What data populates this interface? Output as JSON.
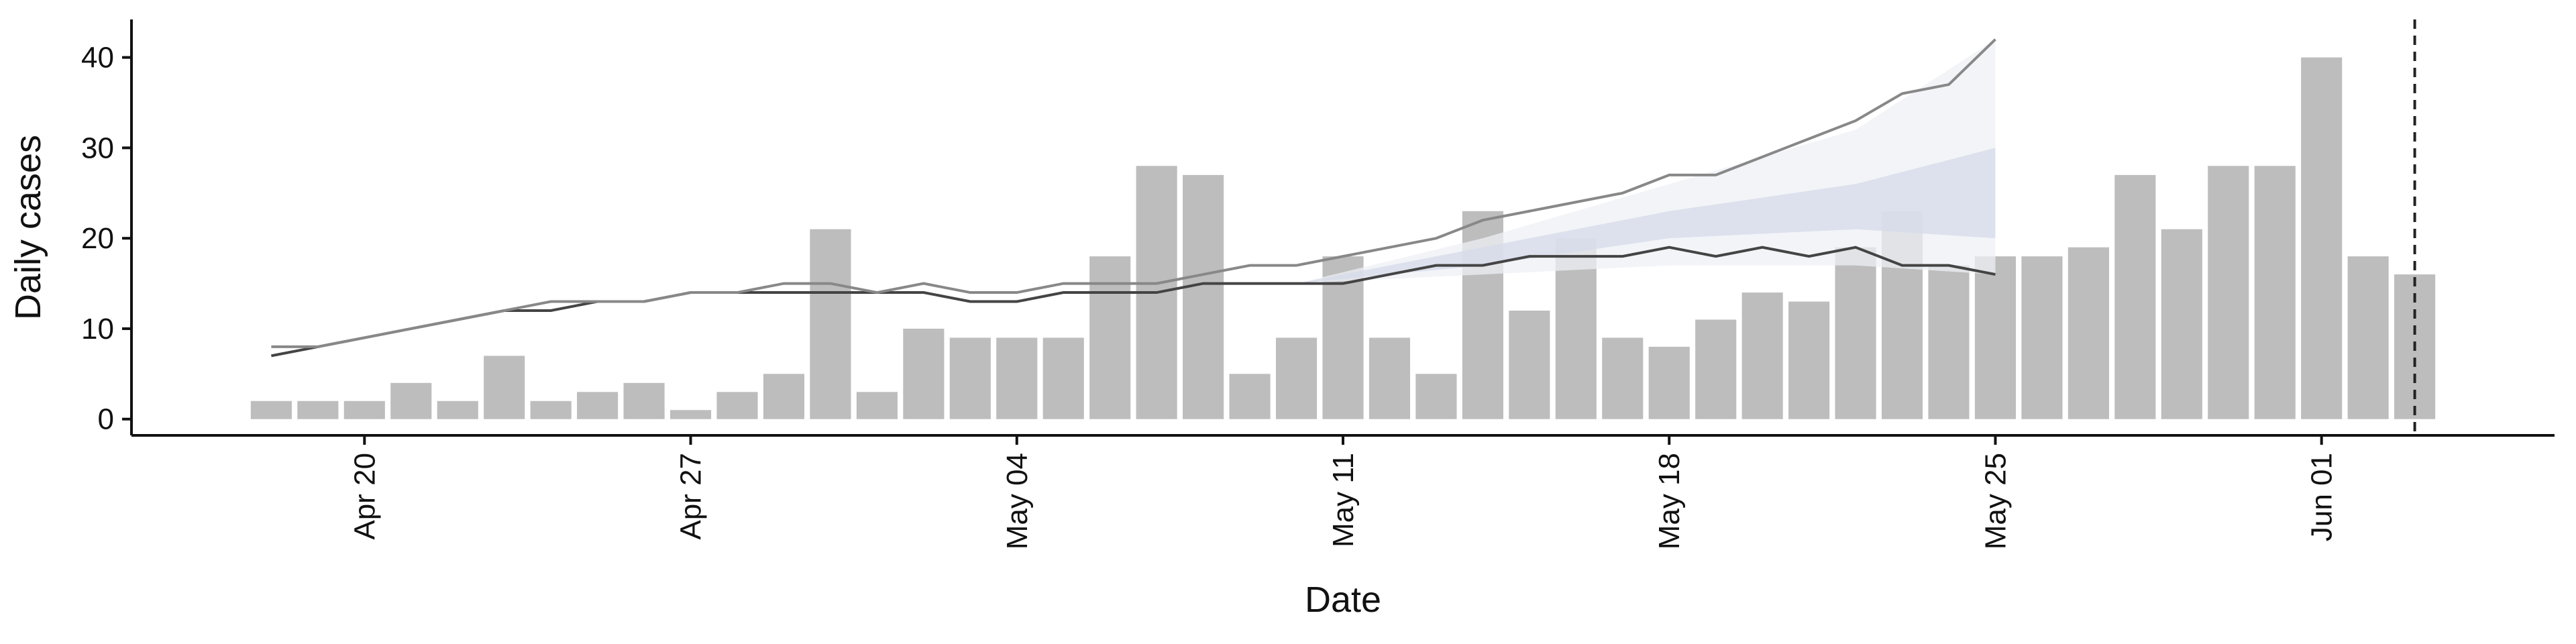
{
  "chart_data": {
    "type": "bar",
    "x_label": "Date",
    "y_label": "Daily cases",
    "x": [
      "Apr 18",
      "Apr 19",
      "Apr 20",
      "Apr 21",
      "Apr 22",
      "Apr 23",
      "Apr 24",
      "Apr 25",
      "Apr 26",
      "Apr 27",
      "Apr 28",
      "Apr 29",
      "Apr 30",
      "May 01",
      "May 02",
      "May 03",
      "May 04",
      "May 05",
      "May 06",
      "May 07",
      "May 08",
      "May 09",
      "May 10",
      "May 11",
      "May 12",
      "May 13",
      "May 14",
      "May 15",
      "May 16",
      "May 17",
      "May 18",
      "May 19",
      "May 20",
      "May 21",
      "May 22",
      "May 23",
      "May 24",
      "May 25",
      "May 26",
      "May 27",
      "May 28",
      "May 29",
      "May 30",
      "May 31",
      "Jun 01",
      "Jun 02",
      "Jun 03"
    ],
    "values": [
      2,
      2,
      2,
      4,
      2,
      7,
      2,
      3,
      4,
      1,
      3,
      5,
      21,
      3,
      10,
      9,
      9,
      9,
      18,
      28,
      27,
      5,
      9,
      18,
      9,
      5,
      23,
      12,
      20,
      9,
      8,
      11,
      14,
      13,
      19,
      23,
      17,
      18,
      18,
      19,
      27,
      21,
      28,
      28,
      40,
      18,
      16
    ],
    "color": "#bdbdbd",
    "bands": [
      {
        "x": [
          "May 10",
          "May 14",
          "May 18",
          "May 22",
          "May 25"
        ],
        "lower": [
          15,
          16,
          17,
          17,
          16
        ],
        "upper": [
          15,
          20,
          26,
          32,
          42
        ],
        "color": "#eef0f6"
      },
      {
        "x": [
          "May 10",
          "May 14",
          "May 18",
          "May 22",
          "May 25"
        ],
        "lower": [
          15,
          17,
          20,
          21,
          20
        ],
        "upper": [
          15,
          19,
          23,
          26,
          30
        ],
        "color": "#d6dbea"
      }
    ],
    "lines": [
      {
        "color": "#444444",
        "x": [
          "Apr 18",
          "Apr 19",
          "Apr 20",
          "Apr 21",
          "Apr 22",
          "Apr 23",
          "Apr 24",
          "Apr 25",
          "Apr 26",
          "Apr 27",
          "Apr 28",
          "Apr 29",
          "Apr 30",
          "May 01",
          "May 02",
          "May 03",
          "May 04",
          "May 05",
          "May 06",
          "May 07",
          "May 08",
          "May 09",
          "May 10",
          "May 11",
          "May 12",
          "May 13",
          "May 14",
          "May 15",
          "May 16",
          "May 17",
          "May 18",
          "May 19",
          "May 20",
          "May 21",
          "May 22",
          "May 23",
          "May 24",
          "May 25"
        ],
        "values": [
          7,
          8,
          9,
          10,
          11,
          12,
          12,
          13,
          13,
          14,
          14,
          14,
          14,
          14,
          14,
          13,
          13,
          14,
          14,
          14,
          15,
          15,
          15,
          15,
          16,
          17,
          17,
          18,
          18,
          18,
          19,
          18,
          19,
          18,
          19,
          17,
          17,
          16
        ]
      },
      {
        "color": "#888888",
        "x": [
          "Apr 18",
          "Apr 19",
          "Apr 20",
          "Apr 21",
          "Apr 22",
          "Apr 23",
          "Apr 24",
          "Apr 25",
          "Apr 26",
          "Apr 27",
          "Apr 28",
          "Apr 29",
          "Apr 30",
          "May 01",
          "May 02",
          "May 03",
          "May 04",
          "May 05",
          "May 06",
          "May 07",
          "May 08",
          "May 09",
          "May 10",
          "May 11",
          "May 12",
          "May 13",
          "May 14",
          "May 15",
          "May 16",
          "May 17",
          "May 18",
          "May 19",
          "May 20",
          "May 21",
          "May 22",
          "May 23",
          "May 24",
          "May 25"
        ],
        "values": [
          8,
          8,
          9,
          10,
          11,
          12,
          13,
          13,
          13,
          14,
          14,
          15,
          15,
          14,
          15,
          14,
          14,
          15,
          15,
          15,
          16,
          17,
          17,
          18,
          19,
          20,
          22,
          23,
          24,
          25,
          27,
          27,
          29,
          31,
          33,
          36,
          37,
          42
        ]
      }
    ],
    "vline": "Jun 03",
    "xlim": [
      "Apr 15",
      "Jun 06"
    ],
    "xticks": [
      "Apr 20",
      "Apr 27",
      "May 04",
      "May 11",
      "May 18",
      "May 25",
      "Jun 01"
    ],
    "ylim": [
      -1.8,
      44.2
    ],
    "yticks": [
      0,
      10,
      20,
      30,
      40
    ]
  }
}
